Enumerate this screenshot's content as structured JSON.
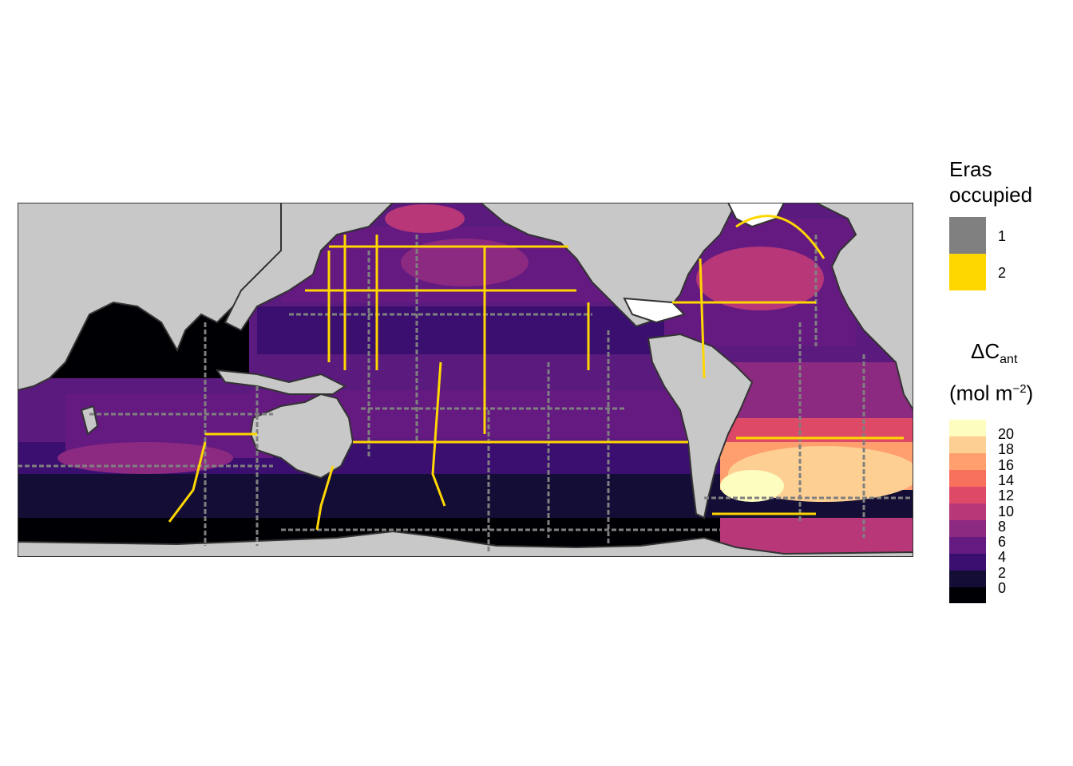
{
  "legend_eras": {
    "title_line1": "Eras",
    "title_line2": "occupied",
    "items": [
      {
        "label": "1",
        "color": "#808080"
      },
      {
        "label": "2",
        "color": "#FFD700"
      }
    ]
  },
  "legend_cant": {
    "title_symbol": "ΔC",
    "title_sub": "ant",
    "title_unit_open": "(mol m",
    "title_unit_sup": "−2",
    "title_unit_close": ")",
    "ticks": [
      "20",
      "18",
      "16",
      "14",
      "12",
      "10",
      "8",
      "6",
      "4",
      "2",
      "0"
    ],
    "colors": [
      "#000004",
      "#140e36",
      "#3b0f70",
      "#641a80",
      "#8c2981",
      "#b73779",
      "#de4968",
      "#f7705c",
      "#fe9f6d",
      "#fecf92",
      "#fcfdbf"
    ]
  },
  "map": {
    "land_color": "#c8c8c8",
    "coast_color": "#333333",
    "projection": "equirectangular, Pacific-centred (20°E – 380°E)"
  }
}
